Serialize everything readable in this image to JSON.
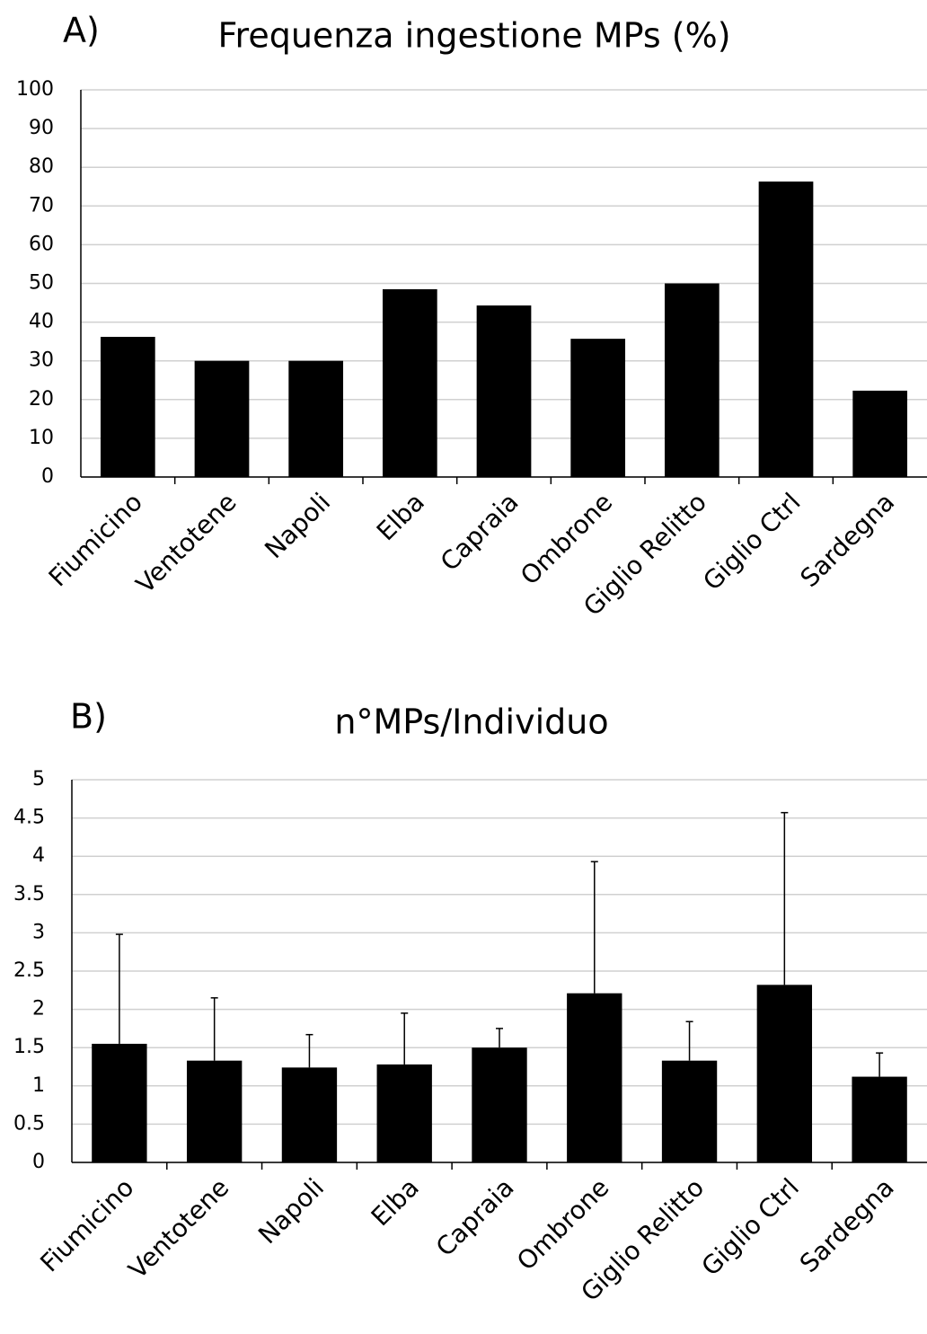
{
  "chart_data": [
    {
      "type": "bar",
      "label": "A)",
      "title": "Frequenza ingestione MPs (%)",
      "categories": [
        "Fiumicino",
        "Ventotene",
        "Napoli",
        "Elba",
        "Capraia",
        "Ombrone",
        "Giglio Relitto",
        "Giglio Ctrl",
        "Sardegna"
      ],
      "values": [
        36.2,
        30,
        30,
        48.5,
        44.3,
        35.7,
        50,
        76.3,
        22.3
      ],
      "color": "#000000",
      "ylim": [
        0,
        100
      ],
      "yticks": [
        0,
        10,
        20,
        30,
        40,
        50,
        60,
        70,
        80,
        90,
        100
      ],
      "grid": true
    },
    {
      "type": "bar",
      "label": "B)",
      "title": "n°MPs/Individuo",
      "categories": [
        "Fiumicino",
        "Ventotene",
        "Napoli",
        "Elba",
        "Capraia",
        "Ombrone",
        "Giglio Relitto",
        "Giglio Ctrl",
        "Sardegna"
      ],
      "values": [
        1.55,
        1.33,
        1.24,
        1.28,
        1.5,
        2.21,
        1.33,
        2.32,
        1.12
      ],
      "errors": [
        1.43,
        0.82,
        0.43,
        0.67,
        0.25,
        1.72,
        0.51,
        2.25,
        0.31
      ],
      "color": "#000000",
      "ylim": [
        0,
        5
      ],
      "yticks": [
        0,
        0.5,
        1,
        1.5,
        2,
        2.5,
        3,
        3.5,
        4,
        4.5,
        5
      ],
      "grid": true
    }
  ]
}
